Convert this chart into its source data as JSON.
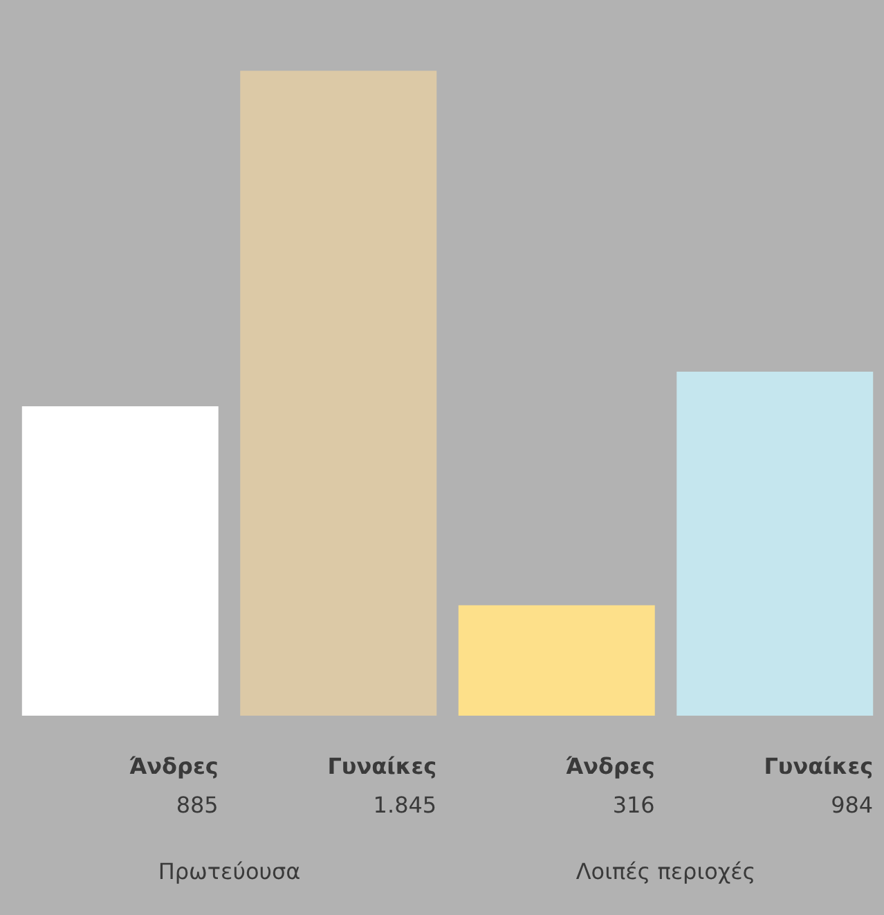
{
  "chart_data": {
    "type": "bar",
    "categories": [
      "Άνδρες",
      "Γυναίκες",
      "Άνδρες",
      "Γυναίκες"
    ],
    "values": [
      885,
      1845,
      316,
      984
    ],
    "colors": [
      "#ffffff",
      "#dcc9a6",
      "#fde08a",
      "#c5e6ee"
    ],
    "value_labels": [
      "885",
      "1.845",
      "316",
      "984"
    ],
    "annotations": [
      "Πρωτεύουσα",
      "Λοιπές περιοχές"
    ],
    "legend": false
  }
}
